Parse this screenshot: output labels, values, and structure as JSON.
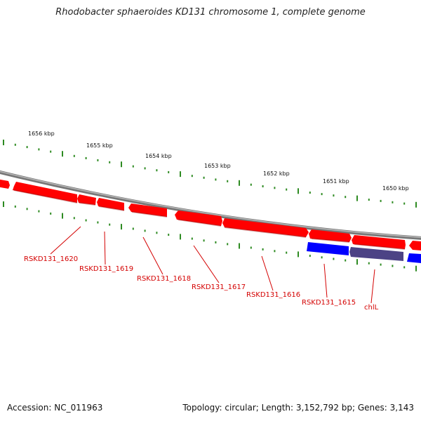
{
  "title": "Rhodobacter sphaeroides KD131 chromosome 1, complete genome",
  "accession": "Accession: NC_011963",
  "summary": "Topology: circular; Length: 3,152,792 bp; Genes: 3,143",
  "kbp_labels": [
    "1656 kbp",
    "1655 kbp",
    "1654 kbp",
    "1653 kbp",
    "1652 kbp",
    "1651 kbp",
    "1650 kbp"
  ],
  "genes": [
    {
      "label": "RSKD131_1620"
    },
    {
      "label": "RSKD131_1619"
    },
    {
      "label": "RSKD131_1618"
    },
    {
      "label": "RSKD131_1617"
    },
    {
      "label": "RSKD131_1616"
    },
    {
      "label": "RSKD131_1615"
    },
    {
      "label": "chlL"
    }
  ],
  "colors": {
    "forward_gene": "#ff0000",
    "reverse_gene": "#0000ff",
    "reverse_gene_highlight": "#4c4385",
    "backbone": "#888888",
    "tick": "#2e8b22",
    "gene_label": "#d40000"
  }
}
